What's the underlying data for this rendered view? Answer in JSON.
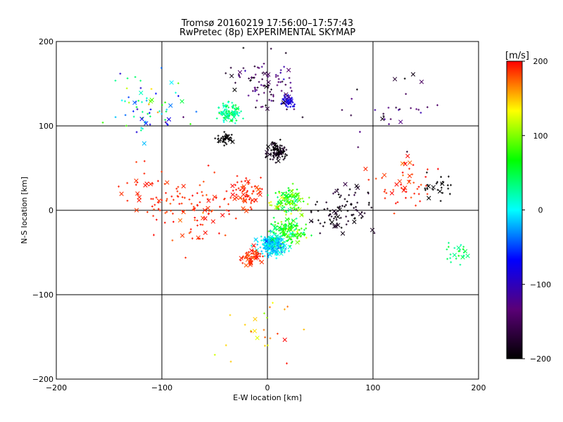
{
  "chart_data": {
    "type": "scatter",
    "title": "Tromsø 20160219 17:56:00–17:57:43",
    "subtitle": "RwPretec (8p) EXPERIMENTAL SKYMAP",
    "xlabel": "E-W location [km]",
    "ylabel": "N-S location [km]",
    "xlim": [
      -200,
      200
    ],
    "ylim": [
      -200,
      200
    ],
    "xticks": [
      -200,
      -100,
      0,
      100,
      200
    ],
    "yticks": [
      -200,
      -100,
      0,
      100,
      200
    ],
    "grid": true,
    "markers": [
      "+",
      "x"
    ],
    "colorbar": {
      "label": "[m/s]",
      "min": -200,
      "max": 200,
      "ticks": [
        -200,
        -100,
        0,
        100,
        200
      ],
      "colors": [
        "#000000",
        "#5a0077",
        "#0000ff",
        "#00ffff",
        "#00ff00",
        "#ffff00",
        "#ff0000"
      ]
    },
    "clusters": [
      {
        "x": 5,
        "y": -40,
        "spread": 14,
        "count": 260,
        "velocity_mean": -10,
        "velocity_sd": 40
      },
      {
        "x": 20,
        "y": -25,
        "spread": 18,
        "count": 140,
        "velocity_mean": 60,
        "velocity_sd": 60
      },
      {
        "x": -15,
        "y": -55,
        "spread": 12,
        "count": 60,
        "velocity_mean": 190,
        "velocity_sd": 15
      },
      {
        "x": 20,
        "y": 10,
        "spread": 18,
        "count": 110,
        "velocity_mean": 80,
        "velocity_sd": 70
      },
      {
        "x": 10,
        "y": 70,
        "spread": 12,
        "count": 90,
        "velocity_mean": -190,
        "velocity_sd": 20
      },
      {
        "x": -40,
        "y": 85,
        "spread": 8,
        "count": 40,
        "velocity_mean": -200,
        "velocity_sd": 5
      },
      {
        "x": -35,
        "y": 115,
        "spread": 12,
        "count": 100,
        "velocity_mean": 30,
        "velocity_sd": 50
      },
      {
        "x": 20,
        "y": 130,
        "spread": 8,
        "count": 40,
        "velocity_mean": -80,
        "velocity_sd": 20
      },
      {
        "x": -20,
        "y": 20,
        "spread": 20,
        "count": 70,
        "velocity_mean": 190,
        "velocity_sd": 15
      },
      {
        "x": 70,
        "y": 0,
        "spread": 35,
        "count": 90,
        "velocity_mean": -190,
        "velocity_sd": 30
      },
      {
        "x": 0,
        "y": 150,
        "spread": 40,
        "count": 90,
        "velocity_mean": -150,
        "velocity_sd": 60
      },
      {
        "x": -70,
        "y": 0,
        "spread": 45,
        "count": 90,
        "velocity_mean": 190,
        "velocity_sd": 20
      },
      {
        "x": 130,
        "y": 30,
        "spread": 35,
        "count": 50,
        "velocity_mean": 190,
        "velocity_sd": 20
      },
      {
        "x": 160,
        "y": 30,
        "spread": 20,
        "count": 25,
        "velocity_mean": -200,
        "velocity_sd": 5
      },
      {
        "x": 180,
        "y": -50,
        "spread": 15,
        "count": 25,
        "velocity_mean": 40,
        "velocity_sd": 40
      },
      {
        "x": -120,
        "y": 120,
        "spread": 45,
        "count": 70,
        "velocity_mean": 20,
        "velocity_sd": 170
      },
      {
        "x": -110,
        "y": 20,
        "spread": 40,
        "count": 40,
        "velocity_mean": 190,
        "velocity_sd": 15
      },
      {
        "x": 0,
        "y": -140,
        "spread": 40,
        "count": 25,
        "velocity_mean": 150,
        "velocity_sd": 90
      },
      {
        "x": 120,
        "y": 120,
        "spread": 50,
        "count": 30,
        "velocity_mean": -150,
        "velocity_sd": 80
      }
    ]
  }
}
